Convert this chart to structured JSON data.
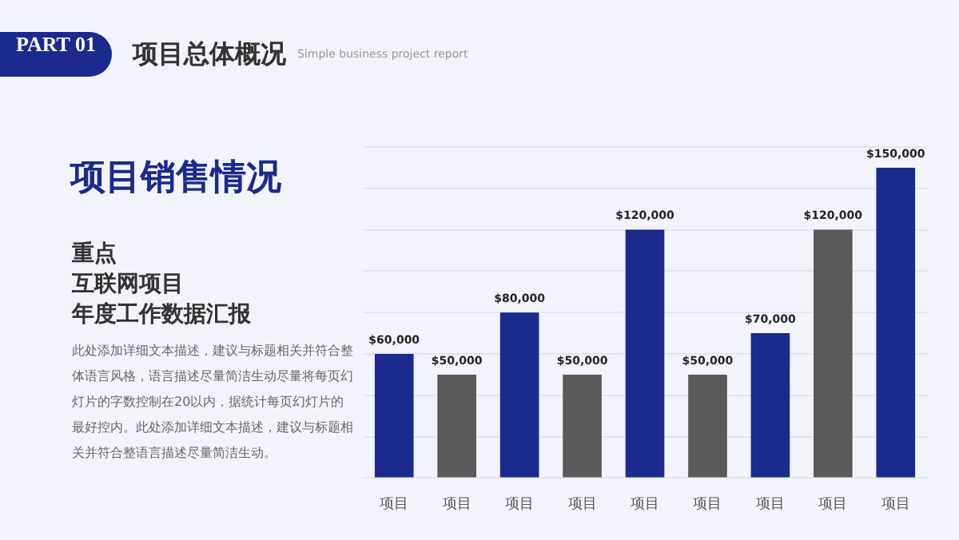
{
  "chart_data": {
    "type": "bar",
    "title": "项目销售情况",
    "subtitle": "重点",
    "annotations": [
      "PART 01",
      "项目总体概况",
      "Simple business project report",
      "此处添加详细文本描述，建议与标题相关并符合整体语言风格，语言描述尽量简洁生动尽量将每页幻灯片的字数控制在20以内，据统计每页幻灯片的最好控内。此处添加详细文本描述，建议与标题相关并符合整语言描述尽量简洁生动。",
      "互联网项目",
      "年度工作数据汇报"
    ],
    "categories": [
      "项目",
      "项目",
      "项目",
      "项目",
      "项目",
      "项目",
      "项目",
      "项目",
      "项目"
    ],
    "values": [
      60000,
      50000,
      80000,
      50000,
      120000,
      50000,
      70000,
      120000,
      150000
    ],
    "colors": [
      "#1b2a8c",
      "#5a5a5a",
      "#1b2a8c",
      "#5a5a5a",
      "#1b2a8c",
      "#5a5a5a",
      "#1b2a8c",
      "#5a5a5a",
      "#1b2a8c"
    ],
    "value_labels": [
      "$60,000",
      "$50,000",
      "$80,000",
      "$50,000",
      "$120,000",
      "$50,000",
      "$70,000",
      "$120,000",
      "$150,000"
    ],
    "ylim": [
      0,
      160000
    ],
    "yticks": [
      {
        "value": 0,
        "label": null
      },
      {
        "value": 20000,
        "label": null
      },
      {
        "value": 40000,
        "label": null
      },
      {
        "value": 60000,
        "label": null
      },
      {
        "value": 80000,
        "label": null
      },
      {
        "value": 100000,
        "label": null
      },
      {
        "value": 120000,
        "label": null
      },
      {
        "value": 140000,
        "label": null
      },
      {
        "value": 160000,
        "label": null
      }
    ],
    "grid": "y",
    "tick_labels": "x",
    "legend": false
  }
}
